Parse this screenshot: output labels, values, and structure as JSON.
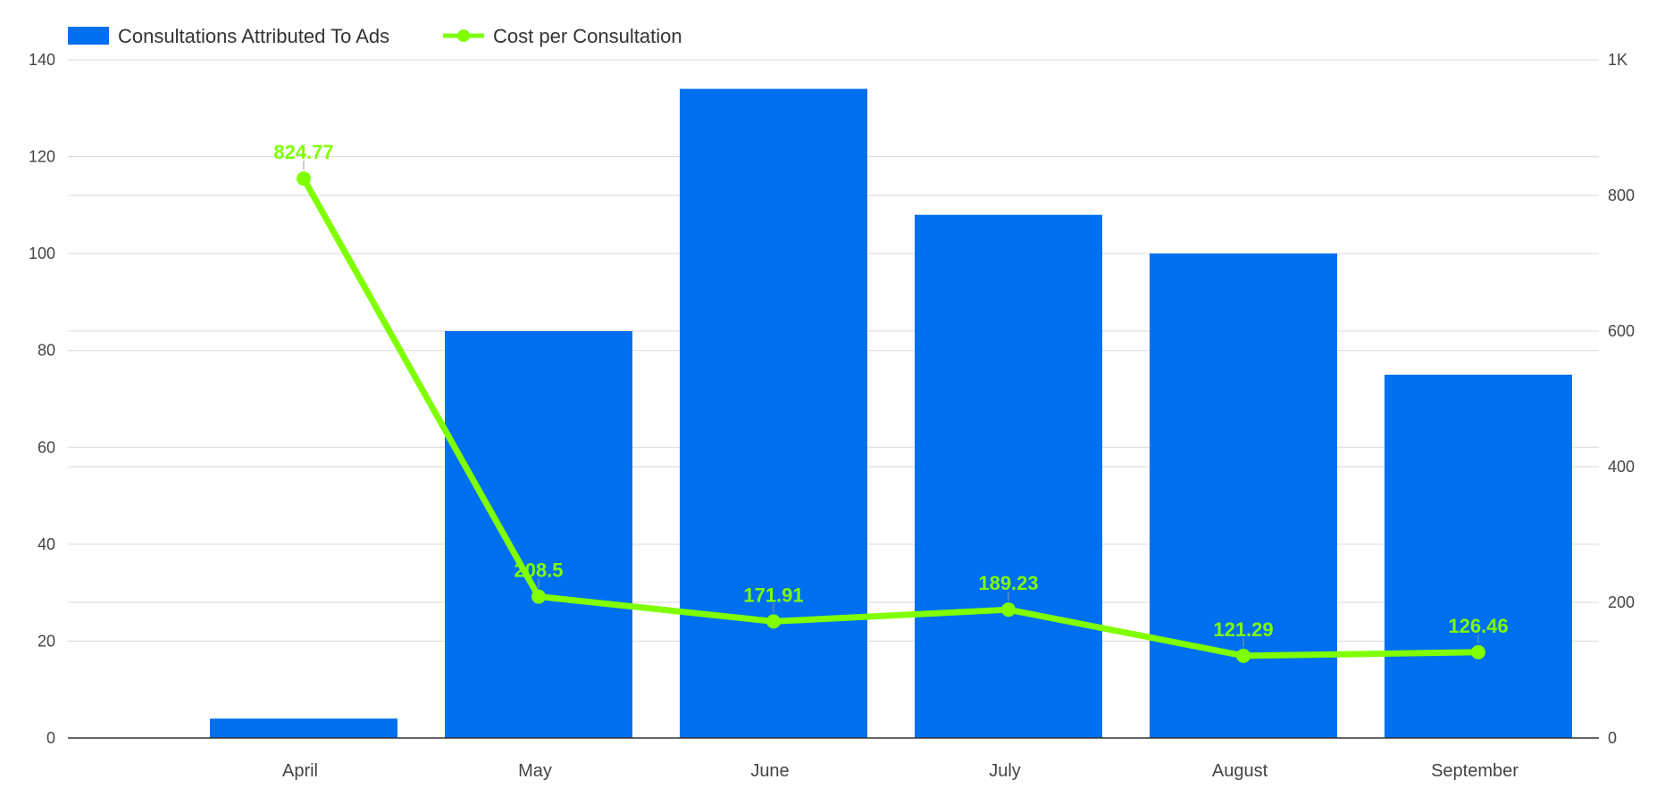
{
  "chart_data": {
    "type": "bar",
    "title": "",
    "xlabel": "",
    "ylabel": "",
    "categories": [
      "April",
      "May",
      "June",
      "July",
      "August",
      "September"
    ],
    "series": [
      {
        "name": "Consultations Attributed To Ads",
        "type": "bar",
        "axis": "left",
        "color": "#0070F0",
        "values": [
          4,
          84,
          134,
          108,
          100,
          75
        ]
      },
      {
        "name": "Cost per Consultation",
        "type": "line",
        "axis": "right",
        "color": "#7FFF00",
        "values": [
          824.77,
          208.5,
          171.91,
          189.23,
          121.29,
          126.46
        ],
        "labels": [
          "824.77",
          "208.5",
          "171.91",
          "189.23",
          "121.29",
          "126.46"
        ]
      }
    ],
    "ylim": [
      0,
      140
    ],
    "yticks": [
      0,
      20,
      40,
      60,
      80,
      100,
      120,
      140
    ],
    "ytick_labels": [
      "0",
      "20",
      "40",
      "60",
      "80",
      "100",
      "120",
      "140"
    ],
    "y2lim": [
      0,
      1000
    ],
    "y2ticks": [
      0,
      200,
      400,
      600,
      800,
      1000
    ],
    "y2tick_labels": [
      "0",
      "200",
      "400",
      "600",
      "800",
      "1K"
    ],
    "grid": true,
    "legend_position": "top-left"
  }
}
